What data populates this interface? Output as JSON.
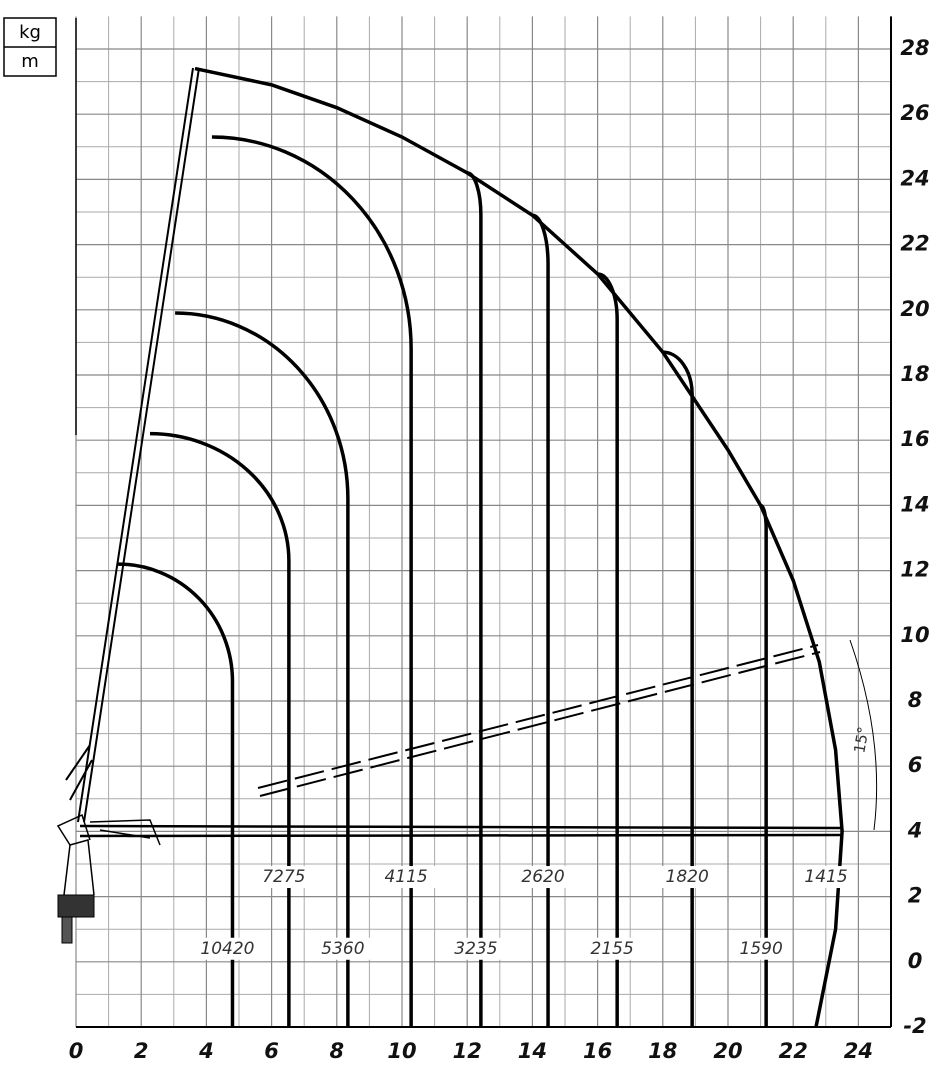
{
  "units_box": {
    "top": "kg",
    "bottom": "m"
  },
  "chart_data": {
    "type": "load-chart",
    "xlim": [
      0,
      25
    ],
    "ylim": [
      -2,
      29
    ],
    "xticks": [
      0,
      2,
      4,
      6,
      8,
      10,
      12,
      14,
      16,
      18,
      20,
      22,
      24
    ],
    "yticks": [
      -2,
      0,
      2,
      4,
      6,
      8,
      10,
      12,
      14,
      16,
      18,
      20,
      22,
      24,
      26,
      28
    ],
    "xminorticks": [
      1,
      3,
      5,
      7,
      9,
      11,
      13,
      15,
      17,
      19,
      21,
      23
    ],
    "yminorticks": [
      -1,
      1,
      3,
      5,
      7,
      9,
      11,
      13,
      15,
      17,
      19,
      21,
      23,
      25,
      27
    ],
    "grid": true,
    "color": "#000000",
    "envelope": {
      "name": "1415",
      "x": [
        3.65,
        6,
        8,
        10,
        12,
        14,
        16,
        18,
        20,
        21,
        22,
        22.8,
        23.3,
        23.5,
        23.3,
        22.7
      ],
      "y": [
        27.4,
        26.9,
        26.2,
        25.3,
        24.2,
        22.9,
        21.1,
        18.7,
        15.7,
        14.0,
        11.7,
        9.2,
        6.5,
        4,
        1,
        -2
      ]
    },
    "zones": [
      {
        "name": "10420",
        "x_start": 1.29,
        "y_start": 12.2,
        "x_vertical": 4.8,
        "y_vertical": 8.6
      },
      {
        "name": "7275",
        "x_start": 2.27,
        "y_start": 16.2,
        "x_vertical": 6.53,
        "y_vertical": 12.3
      },
      {
        "name": "5360",
        "x_start": 3.04,
        "y_start": 19.9,
        "x_vertical": 8.34,
        "y_vertical": 14.2
      },
      {
        "name": "4115",
        "x_start": 4.17,
        "y_start": 25.3,
        "x_vertical": 10.28,
        "y_vertical": 18.8
      },
      {
        "name": "3235",
        "x_start": 12,
        "y_start": 24.2,
        "x_vertical": 12.42,
        "y_vertical": 22.9
      },
      {
        "name": "2620",
        "x_start": 14,
        "y_start": 22.9,
        "x_vertical": 14.48,
        "y_vertical": 21.4
      },
      {
        "name": "2155",
        "x_start": 16,
        "y_start": 21.1,
        "x_vertical": 16.6,
        "y_vertical": 19.7
      },
      {
        "name": "1820",
        "x_start": 18,
        "y_start": 18.7,
        "x_vertical": 18.9,
        "y_vertical": 17.4
      },
      {
        "name": "1590",
        "x_start": 21,
        "y_start": 14.0,
        "x_vertical": 21.17,
        "y_vertical": 13.3
      }
    ],
    "annotation": "15°"
  }
}
